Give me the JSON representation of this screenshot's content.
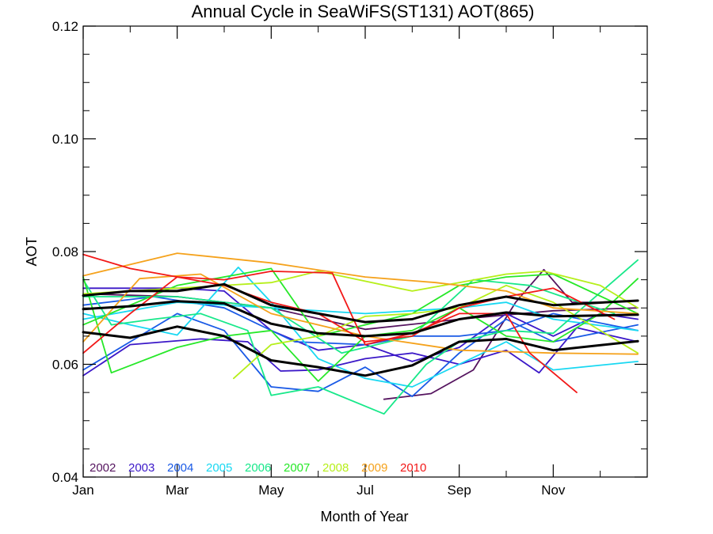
{
  "chart_data": {
    "type": "line",
    "title": "Annual Cycle in SeaWiFS(ST131) AOT(865)",
    "xlabel": "Month of Year",
    "ylabel": "AOT",
    "xlim": [
      1,
      13
    ],
    "ylim": [
      0.04,
      0.12
    ],
    "x_ticks": [
      1,
      3,
      5,
      7,
      9,
      11
    ],
    "x_tick_labels": [
      "Jan",
      "Mar",
      "May",
      "Jul",
      "Sep",
      "Nov"
    ],
    "y_ticks": [
      0.04,
      0.06,
      0.08,
      0.1,
      0.12
    ],
    "y_tick_labels": [
      "0.04",
      "0.06",
      "0.08",
      "0.10",
      "0.12"
    ],
    "grid": false,
    "legend_position": "bottom-left",
    "legend": [
      {
        "label": "2002",
        "color": "#55145f"
      },
      {
        "label": "2003",
        "color": "#3b18c8"
      },
      {
        "label": "2004",
        "color": "#1a5ae6"
      },
      {
        "label": "2005",
        "color": "#19d8f2"
      },
      {
        "label": "2006",
        "color": "#18e88a"
      },
      {
        "label": "2007",
        "color": "#27e829"
      },
      {
        "label": "2008",
        "color": "#b6ef1a"
      },
      {
        "label": "2009",
        "color": "#f5a21c"
      },
      {
        "label": "2010",
        "color": "#f21818"
      }
    ],
    "series": [
      {
        "color": "#55145f",
        "points": [
          [
            7.4,
            0.0538
          ],
          [
            8.4,
            0.0548
          ],
          [
            9.3,
            0.059
          ],
          [
            10.2,
            0.071
          ],
          [
            10.8,
            0.0768
          ],
          [
            11.4,
            0.071
          ],
          [
            12.3,
            0.071
          ]
        ]
      },
      {
        "color": "#55145f",
        "points": [
          [
            1,
            0.0725
          ],
          [
            3,
            0.072
          ],
          [
            5,
            0.07
          ],
          [
            7,
            0.0662
          ],
          [
            9,
            0.068
          ],
          [
            11,
            0.0695
          ],
          [
            12.8,
            0.07
          ]
        ]
      },
      {
        "color": "#3b18c8",
        "points": [
          [
            1,
            0.058
          ],
          [
            2,
            0.0635
          ],
          [
            3.5,
            0.0645
          ],
          [
            4.5,
            0.064
          ],
          [
            5.2,
            0.0588
          ],
          [
            6,
            0.059
          ],
          [
            7,
            0.061
          ],
          [
            8,
            0.062
          ],
          [
            9,
            0.06
          ],
          [
            10,
            0.0625
          ],
          [
            10.7,
            0.0585
          ],
          [
            11.5,
            0.0665
          ],
          [
            12.8,
            0.064
          ]
        ]
      },
      {
        "color": "#3b18c8",
        "points": [
          [
            1,
            0.0735
          ],
          [
            3,
            0.0735
          ],
          [
            4,
            0.073
          ],
          [
            5,
            0.066
          ],
          [
            6,
            0.0625
          ],
          [
            7,
            0.0635
          ],
          [
            8,
            0.0605
          ],
          [
            9,
            0.063
          ],
          [
            10,
            0.069
          ],
          [
            11,
            0.065
          ],
          [
            12,
            0.069
          ],
          [
            12.8,
            0.068
          ]
        ]
      },
      {
        "color": "#1a5ae6",
        "points": [
          [
            1,
            0.059
          ],
          [
            3,
            0.069
          ],
          [
            4,
            0.066
          ],
          [
            5,
            0.056
          ],
          [
            6,
            0.0552
          ],
          [
            7,
            0.0595
          ],
          [
            8,
            0.0543
          ],
          [
            9,
            0.062
          ],
          [
            10,
            0.068
          ],
          [
            11,
            0.064
          ],
          [
            12.8,
            0.067
          ]
        ]
      },
      {
        "color": "#1a5ae6",
        "points": [
          [
            1,
            0.0705
          ],
          [
            2.5,
            0.072
          ],
          [
            4,
            0.07
          ],
          [
            5.5,
            0.064
          ],
          [
            7,
            0.0635
          ],
          [
            8,
            0.065
          ],
          [
            9,
            0.065
          ],
          [
            10,
            0.066
          ],
          [
            11,
            0.069
          ],
          [
            12.8,
            0.066
          ]
        ]
      },
      {
        "color": "#19d8f2",
        "points": [
          [
            1,
            0.069
          ],
          [
            2,
            0.067
          ],
          [
            3,
            0.0652
          ],
          [
            4.3,
            0.0772
          ],
          [
            5,
            0.071
          ],
          [
            6,
            0.061
          ],
          [
            7,
            0.0575
          ],
          [
            8,
            0.056
          ],
          [
            9.5,
            0.062
          ],
          [
            10,
            0.064
          ],
          [
            11,
            0.059
          ],
          [
            12.8,
            0.0605
          ]
        ]
      },
      {
        "color": "#19d8f2",
        "points": [
          [
            1,
            0.068
          ],
          [
            3,
            0.071
          ],
          [
            5,
            0.07
          ],
          [
            7,
            0.069
          ],
          [
            9,
            0.07
          ],
          [
            10,
            0.071
          ],
          [
            11,
            0.068
          ],
          [
            12.8,
            0.066
          ]
        ]
      },
      {
        "color": "#18e88a",
        "points": [
          [
            1,
            0.075
          ],
          [
            1.6,
            0.067
          ],
          [
            2.5,
            0.068
          ],
          [
            3.5,
            0.069
          ],
          [
            4.5,
            0.066
          ],
          [
            5,
            0.0545
          ],
          [
            6,
            0.056
          ],
          [
            7.4,
            0.0512
          ],
          [
            8.3,
            0.06
          ],
          [
            9,
            0.064
          ],
          [
            10,
            0.066
          ],
          [
            11,
            0.0655
          ],
          [
            12.8,
            0.0785
          ]
        ]
      },
      {
        "color": "#18e88a",
        "points": [
          [
            1,
            0.072
          ],
          [
            3,
            0.072
          ],
          [
            5,
            0.07
          ],
          [
            6.5,
            0.062
          ],
          [
            8,
            0.065
          ],
          [
            9.3,
            0.075
          ],
          [
            10.5,
            0.074
          ],
          [
            11.2,
            0.072
          ],
          [
            12.3,
            0.069
          ]
        ]
      },
      {
        "color": "#27e829",
        "points": [
          [
            1,
            0.0755
          ],
          [
            1.6,
            0.0585
          ],
          [
            3,
            0.063
          ],
          [
            4,
            0.065
          ],
          [
            5,
            0.066
          ],
          [
            6,
            0.057
          ],
          [
            7,
            0.065
          ],
          [
            8,
            0.066
          ],
          [
            9,
            0.07
          ],
          [
            10,
            0.065
          ],
          [
            11,
            0.064
          ],
          [
            12,
            0.069
          ],
          [
            12.8,
            0.0752
          ]
        ]
      },
      {
        "color": "#27e829",
        "points": [
          [
            1,
            0.067
          ],
          [
            3,
            0.074
          ],
          [
            5,
            0.077
          ],
          [
            6,
            0.065
          ],
          [
            7,
            0.067
          ],
          [
            8,
            0.069
          ],
          [
            9,
            0.074
          ],
          [
            10,
            0.0755
          ],
          [
            11,
            0.076
          ],
          [
            12.8,
            0.069
          ]
        ]
      },
      {
        "color": "#b6ef1a",
        "points": [
          [
            4.2,
            0.0575
          ],
          [
            5,
            0.0635
          ],
          [
            6,
            0.065
          ],
          [
            7,
            0.0685
          ],
          [
            8,
            0.069
          ],
          [
            9,
            0.07
          ],
          [
            10,
            0.074
          ],
          [
            11,
            0.071
          ],
          [
            12.8,
            0.062
          ]
        ]
      },
      {
        "color": "#b6ef1a",
        "points": [
          [
            1,
            0.0725
          ],
          [
            3,
            0.0735
          ],
          [
            5,
            0.0745
          ],
          [
            6,
            0.0765
          ],
          [
            8,
            0.073
          ],
          [
            10,
            0.076
          ],
          [
            10.8,
            0.0765
          ],
          [
            12,
            0.074
          ],
          [
            12.8,
            0.07
          ]
        ]
      },
      {
        "color": "#f5a21c",
        "points": [
          [
            1,
            0.0757
          ],
          [
            3,
            0.0797
          ],
          [
            5,
            0.078
          ],
          [
            7,
            0.0755
          ],
          [
            8.5,
            0.0745
          ],
          [
            10,
            0.073
          ],
          [
            11,
            0.07
          ],
          [
            12.8,
            0.069
          ]
        ]
      },
      {
        "color": "#f5a21c",
        "points": [
          [
            1,
            0.064
          ],
          [
            2.2,
            0.0752
          ],
          [
            3.5,
            0.076
          ],
          [
            5,
            0.069
          ],
          [
            7,
            0.065
          ],
          [
            9,
            0.0625
          ],
          [
            11,
            0.062
          ],
          [
            12.8,
            0.0618
          ]
        ]
      },
      {
        "color": "#f21818",
        "points": [
          [
            1,
            0.0795
          ],
          [
            2,
            0.077
          ],
          [
            3,
            0.0755
          ],
          [
            4,
            0.075
          ],
          [
            5,
            0.0765
          ],
          [
            6.3,
            0.0762
          ],
          [
            7,
            0.0635
          ],
          [
            8,
            0.0655
          ],
          [
            9,
            0.069
          ],
          [
            10,
            0.069
          ],
          [
            10.5,
            0.062
          ],
          [
            11.5,
            0.055
          ]
        ]
      },
      {
        "color": "#f21818",
        "points": [
          [
            1,
            0.062
          ],
          [
            2,
            0.069
          ],
          [
            3,
            0.0755
          ],
          [
            4,
            0.074
          ],
          [
            5,
            0.071
          ],
          [
            6,
            0.069
          ],
          [
            7,
            0.064
          ],
          [
            8,
            0.065
          ],
          [
            9,
            0.07
          ],
          [
            10,
            0.072
          ],
          [
            11,
            0.0735
          ],
          [
            12.3,
            0.068
          ]
        ]
      },
      {
        "color": "#000000",
        "width": 3,
        "points": [
          [
            1,
            0.0722
          ],
          [
            2,
            0.073
          ],
          [
            3,
            0.073
          ],
          [
            4,
            0.0742
          ],
          [
            5,
            0.0705
          ],
          [
            6,
            0.069
          ],
          [
            7,
            0.0675
          ],
          [
            8,
            0.068
          ],
          [
            9,
            0.0705
          ],
          [
            10,
            0.072
          ],
          [
            11,
            0.0705
          ],
          [
            12.8,
            0.0713
          ]
        ]
      },
      {
        "color": "#000000",
        "width": 3,
        "points": [
          [
            1,
            0.0698
          ],
          [
            2,
            0.0703
          ],
          [
            3,
            0.0712
          ],
          [
            4,
            0.0708
          ],
          [
            5,
            0.0672
          ],
          [
            6,
            0.0655
          ],
          [
            7,
            0.065
          ],
          [
            8,
            0.0655
          ],
          [
            9,
            0.068
          ],
          [
            10,
            0.0692
          ],
          [
            11,
            0.0685
          ],
          [
            12.8,
            0.0688
          ]
        ]
      },
      {
        "color": "#000000",
        "width": 3,
        "points": [
          [
            1,
            0.0657
          ],
          [
            2,
            0.0647
          ],
          [
            3,
            0.0667
          ],
          [
            4,
            0.065
          ],
          [
            5,
            0.0607
          ],
          [
            6,
            0.0595
          ],
          [
            7,
            0.058
          ],
          [
            8,
            0.0598
          ],
          [
            9,
            0.064
          ],
          [
            10,
            0.0645
          ],
          [
            11,
            0.0625
          ],
          [
            12.8,
            0.0641
          ]
        ]
      }
    ]
  }
}
